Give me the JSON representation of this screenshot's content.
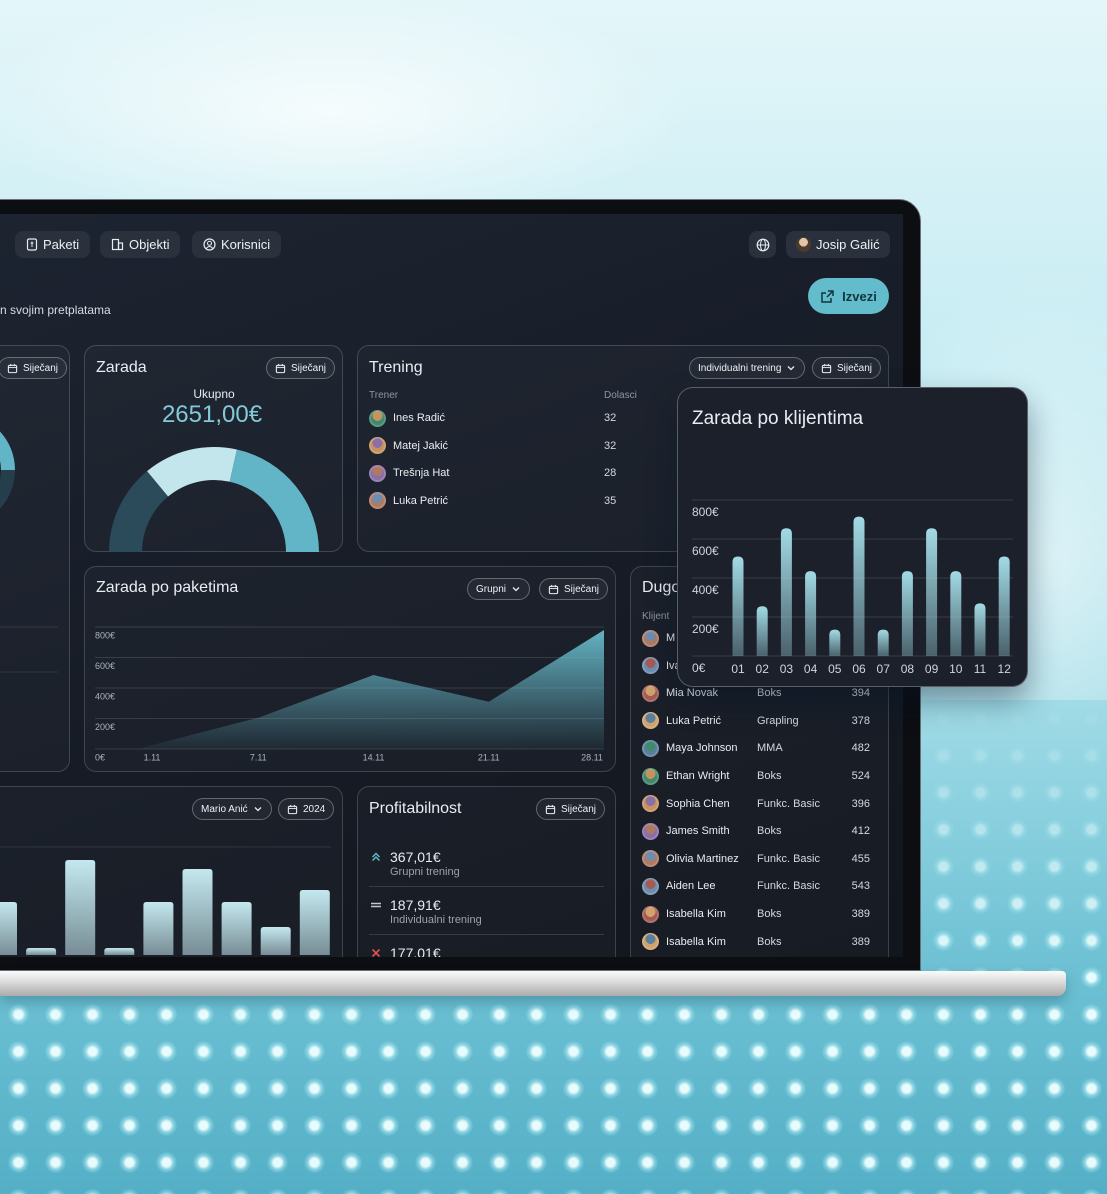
{
  "nav": {
    "items": [
      "Paketi",
      "Objekti",
      "Korisnici"
    ],
    "user": "Josip Galić"
  },
  "header": {
    "subtitle": "n svojim pretplatama",
    "export": "Izvezi"
  },
  "left_card": {
    "filter": "Siječanj"
  },
  "zarada": {
    "title": "Zarada",
    "filter": "Siječanj",
    "total_label": "Ukupno",
    "total": "2651,00€"
  },
  "trening": {
    "title": "Trening",
    "filters": [
      "Individualni trening",
      "Siječanj"
    ],
    "columns": [
      "Trener",
      "Dolasci"
    ],
    "rows": [
      [
        "Ines Radić",
        32
      ],
      [
        "Matej Jakić",
        32
      ],
      [
        "Trešnja Hat",
        28
      ],
      [
        "Luka Petrić",
        35
      ]
    ]
  },
  "dugovanja": {
    "title": "Dugo",
    "columns": [
      "Klijent"
    ],
    "rows": [
      [
        "M"
      ],
      [
        "Iva"
      ],
      [
        "Mia Novak",
        "Boks",
        394
      ],
      [
        "Luka Petrić",
        "Grapling",
        378
      ],
      [
        "Maya Johnson",
        "MMA",
        482
      ],
      [
        "Ethan Wright",
        "Boks",
        524
      ],
      [
        "Sophia Chen",
        "Funkc. Basic",
        396
      ],
      [
        "James Smith",
        "Boks",
        412
      ],
      [
        "Olivia Martinez",
        "Funkc. Basic",
        455
      ],
      [
        "Aiden Lee",
        "Funkc. Basic",
        543
      ],
      [
        "Isabella Kim",
        "Boks",
        389
      ],
      [
        "Isabella Kim",
        "Boks",
        389
      ]
    ]
  },
  "bottom_left": {
    "filters": [
      "Mario Anić",
      "2024"
    ]
  },
  "profitabilnost": {
    "title": "Profitabilnost",
    "filter": "Siječanj",
    "items": [
      {
        "value": "367,01€",
        "label": "Grupni trening"
      },
      {
        "value": "187,91€",
        "label": "Individualni trening"
      },
      {
        "value": "177,01€"
      }
    ]
  },
  "chart_data": [
    {
      "type": "pie",
      "values": [
        28,
        29,
        43
      ],
      "colors": [
        "#2b4a5a",
        "#c3e6ec",
        "#62b4c7"
      ]
    },
    {
      "type": "area",
      "title": "Zarada po paketima",
      "filters": [
        "Grupni",
        "Siječanj"
      ],
      "categories": [
        "1.11",
        "7.11",
        "14.11",
        "21.11",
        "28.11"
      ],
      "values": [
        10,
        205,
        485,
        310,
        780
      ],
      "ylim": [
        0,
        800
      ],
      "yticks": [
        {
          "value": 0,
          "label": "0€"
        },
        {
          "value": 200,
          "label": "200€"
        },
        {
          "value": 400,
          "label": "400€"
        },
        {
          "value": 600,
          "label": "600€"
        },
        {
          "value": 800,
          "label": "800€"
        }
      ],
      "color": "#6cc3d3",
      "grid": true
    },
    {
      "type": "bar",
      "values": [
        53,
        7,
        95,
        7,
        53,
        86,
        53,
        28,
        65
      ],
      "color": "#c4e8ef"
    },
    {
      "type": "bar",
      "title": "Zarada po klijentima",
      "categories": [
        "01",
        "02",
        "03",
        "04",
        "05",
        "06",
        "07",
        "08",
        "09",
        "10",
        "11",
        "12"
      ],
      "values": [
        510,
        255,
        655,
        435,
        135,
        715,
        135,
        435,
        655,
        435,
        270,
        510
      ],
      "ylim": [
        0,
        800
      ],
      "yticks": [
        {
          "value": 0,
          "label": "0€"
        },
        {
          "value": 200,
          "label": "200€"
        },
        {
          "value": 400,
          "label": "400€"
        },
        {
          "value": 600,
          "label": "600€"
        },
        {
          "value": 800,
          "label": "800€"
        }
      ],
      "color": "#a2dbe5",
      "grid": true
    }
  ]
}
